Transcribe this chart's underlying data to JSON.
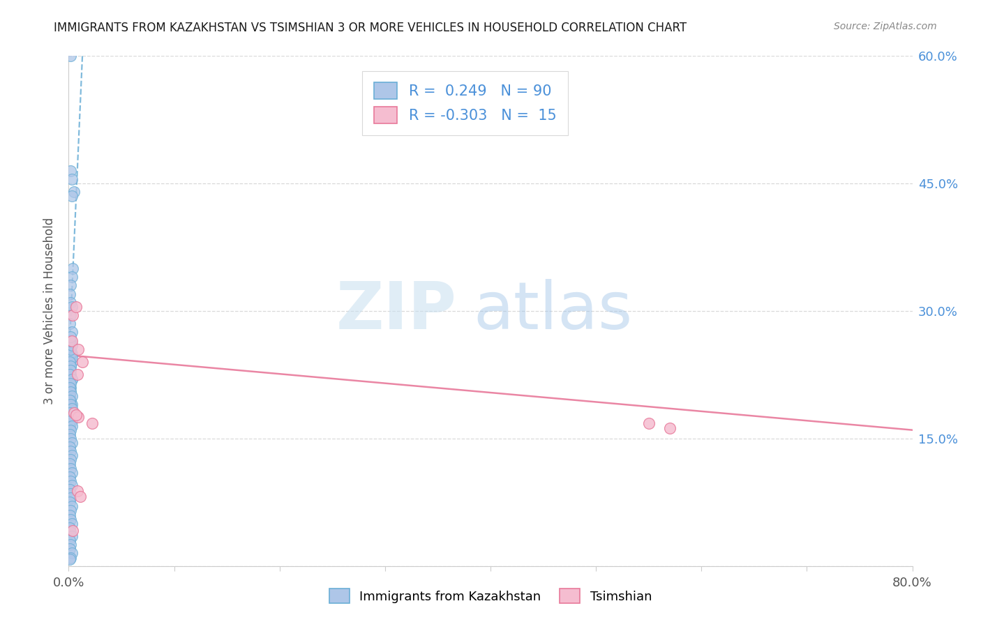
{
  "title": "IMMIGRANTS FROM KAZAKHSTAN VS TSIMSHIAN 3 OR MORE VEHICLES IN HOUSEHOLD CORRELATION CHART",
  "source": "Source: ZipAtlas.com",
  "ylabel": "3 or more Vehicles in Household",
  "xlabel_blue": "Immigrants from Kazakhstan",
  "xlabel_pink": "Tsimshian",
  "xlim": [
    0.0,
    0.8
  ],
  "ylim": [
    0.0,
    0.6
  ],
  "xtick_positions": [
    0.0,
    0.1,
    0.2,
    0.3,
    0.4,
    0.5,
    0.6,
    0.7,
    0.8
  ],
  "xtick_labels": [
    "0.0%",
    "",
    "",
    "",
    "",
    "",
    "",
    "",
    "80.0%"
  ],
  "ytick_positions": [
    0.0,
    0.15,
    0.3,
    0.45,
    0.6
  ],
  "ytick_labels_right": [
    "",
    "15.0%",
    "30.0%",
    "45.0%",
    "60.0%"
  ],
  "legend_r_blue": "0.249",
  "legend_n_blue": "90",
  "legend_r_pink": "-0.303",
  "legend_n_pink": "15",
  "blue_fill": "#aec6e8",
  "blue_edge": "#6aaed6",
  "pink_fill": "#f5bdd0",
  "pink_edge": "#e8799a",
  "line_blue_color": "#6aaed6",
  "line_pink_color": "#e8799a",
  "watermark_zip": "ZIP",
  "watermark_atlas": "atlas",
  "blue_scatter_x": [
    0.002,
    0.002,
    0.003,
    0.005,
    0.003,
    0.004,
    0.003,
    0.002,
    0.001,
    0.002,
    0.003,
    0.002,
    0.001,
    0.003,
    0.002,
    0.001,
    0.002,
    0.003,
    0.001,
    0.002,
    0.003,
    0.002,
    0.001,
    0.002,
    0.003,
    0.001,
    0.002,
    0.002,
    0.001,
    0.002,
    0.003,
    0.002,
    0.001,
    0.002,
    0.003,
    0.001,
    0.002,
    0.003,
    0.001,
    0.002,
    0.002,
    0.001,
    0.003,
    0.002,
    0.001,
    0.002,
    0.003,
    0.001,
    0.002,
    0.003,
    0.001,
    0.002,
    0.001,
    0.003,
    0.002,
    0.001,
    0.002,
    0.003,
    0.001,
    0.002,
    0.003,
    0.002,
    0.001,
    0.002,
    0.003,
    0.001,
    0.002,
    0.003,
    0.001,
    0.002,
    0.002,
    0.001,
    0.003,
    0.002,
    0.001,
    0.002,
    0.003,
    0.001,
    0.002,
    0.003,
    0.001,
    0.002,
    0.001,
    0.003,
    0.002,
    0.001,
    0.002,
    0.003,
    0.001,
    0.002
  ],
  "blue_scatter_y": [
    0.6,
    0.465,
    0.455,
    0.44,
    0.435,
    0.35,
    0.34,
    0.33,
    0.32,
    0.31,
    0.305,
    0.295,
    0.285,
    0.275,
    0.265,
    0.26,
    0.255,
    0.25,
    0.25,
    0.245,
    0.24,
    0.235,
    0.23,
    0.225,
    0.22,
    0.215,
    0.21,
    0.205,
    0.2,
    0.195,
    0.19,
    0.185,
    0.18,
    0.175,
    0.17,
    0.165,
    0.25,
    0.245,
    0.24,
    0.235,
    0.23,
    0.225,
    0.22,
    0.215,
    0.21,
    0.205,
    0.2,
    0.195,
    0.19,
    0.185,
    0.18,
    0.175,
    0.17,
    0.165,
    0.16,
    0.155,
    0.15,
    0.145,
    0.14,
    0.135,
    0.13,
    0.125,
    0.12,
    0.115,
    0.11,
    0.105,
    0.1,
    0.095,
    0.09,
    0.085,
    0.08,
    0.075,
    0.07,
    0.065,
    0.06,
    0.055,
    0.05,
    0.045,
    0.04,
    0.035,
    0.03,
    0.025,
    0.02,
    0.015,
    0.01,
    0.008,
    0.255,
    0.26,
    0.265,
    0.27
  ],
  "pink_scatter_x": [
    0.003,
    0.005,
    0.008,
    0.009,
    0.013,
    0.55,
    0.57,
    0.004,
    0.007,
    0.022,
    0.007,
    0.009,
    0.004,
    0.008,
    0.011
  ],
  "pink_scatter_y": [
    0.265,
    0.18,
    0.225,
    0.175,
    0.24,
    0.168,
    0.162,
    0.295,
    0.178,
    0.168,
    0.305,
    0.255,
    0.042,
    0.088,
    0.082
  ],
  "blue_trend_x": [
    0.0,
    0.013
  ],
  "blue_trend_y": [
    0.236,
    0.6
  ],
  "pink_trend_x": [
    0.0,
    0.8
  ],
  "pink_trend_y": [
    0.248,
    0.16
  ]
}
